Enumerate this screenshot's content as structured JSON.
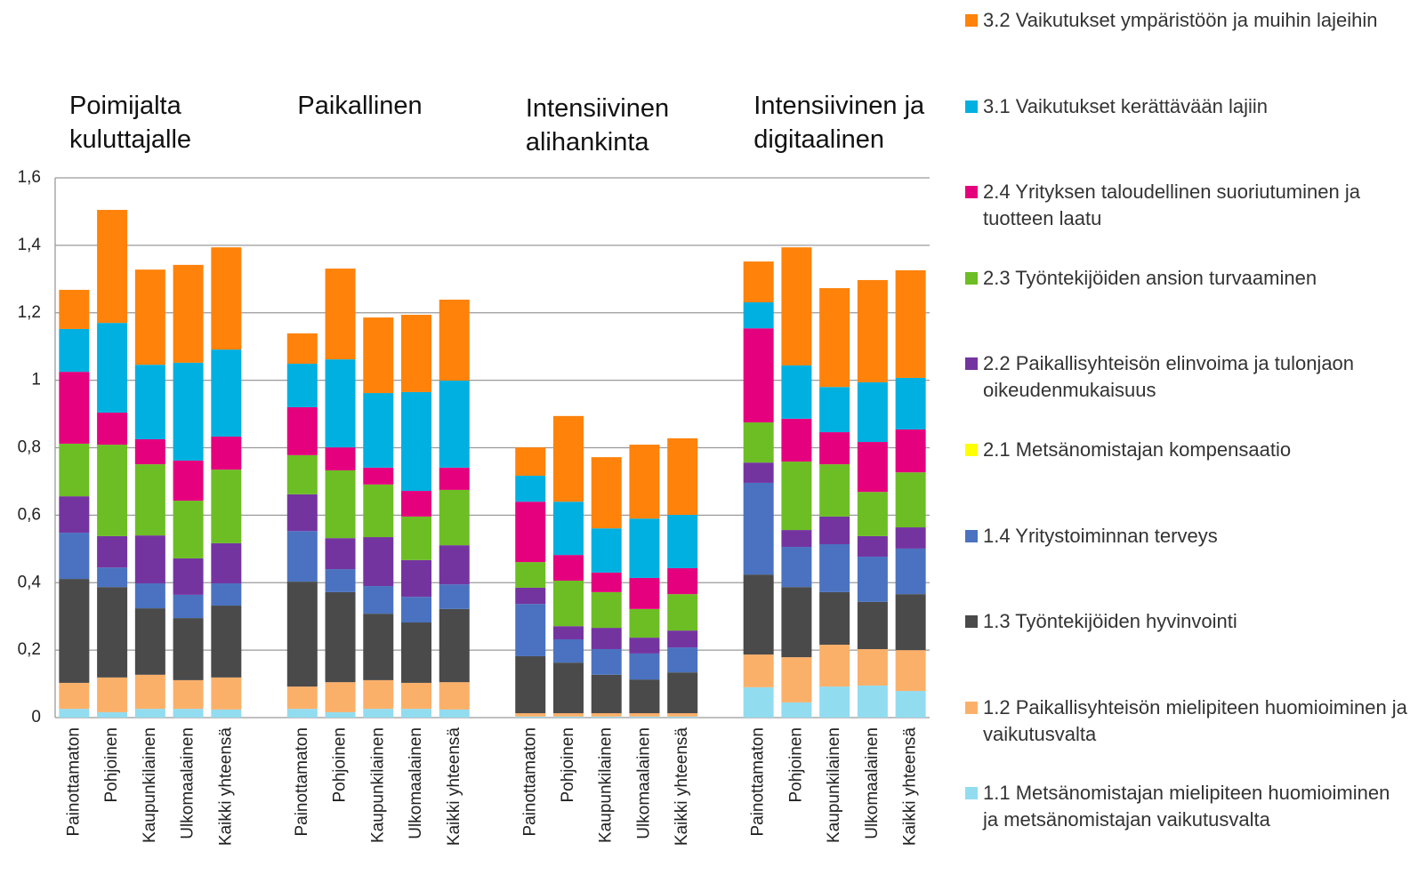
{
  "chart_data": {
    "type": "stacked_bar",
    "group_labels": [
      "Poimijalta kuluttajalle",
      "Paikallinen",
      "Intensiivinen alihankinta",
      "Intensiivinen ja digitaalinen"
    ],
    "categories": [
      "Painottamaton",
      "Pohjoinen",
      "Kaupunkilainen",
      "Ulkomaalainen",
      "Kaikki yhteensä",
      null,
      "Painottamaton",
      "Pohjoinen",
      "Kaupunkilainen",
      "Ulkomaalainen",
      "Kaikki yhteensä",
      null,
      "Painottamaton",
      "Pohjoinen",
      "Kaupunkilainen",
      "Ulkomaalainen",
      "Kaikki yhteensä",
      null,
      "Painottamaton",
      "Pohjoinen",
      "Kaupunkilainen",
      "Ulkomaalainen",
      "Kaikki yhteensä"
    ],
    "ylim": [
      0,
      1.6
    ],
    "yticks": [
      0,
      {
        "value": 0.2,
        "label": "0,2"
      },
      {
        "value": 0.4,
        "label": "0,4"
      },
      {
        "value": 0.6,
        "label": "0,6"
      },
      {
        "value": 0.8,
        "label": "0,8"
      },
      1,
      {
        "value": 1.2,
        "label": "1,2"
      },
      {
        "value": 1.4,
        "label": "1,4"
      },
      {
        "value": 1.6,
        "label": "1,6"
      }
    ],
    "grid": true,
    "legend": "right",
    "series": [
      {
        "name": "1.1 Metsänomistajan mielipiteen huomioiminen ja metsänomistajan vaikutusvalta",
        "color": "#92dcf0",
        "values": [
          0.026,
          0.016,
          0.026,
          0.026,
          0.024,
          null,
          0.026,
          0.016,
          0.026,
          0.026,
          0.024,
          null,
          0.003,
          0.003,
          0.003,
          0.003,
          0.003,
          null,
          0.09,
          0.045,
          0.092,
          0.095,
          0.079
        ]
      },
      {
        "name": "1.2 Paikallisyhteisön mielipiteen huomioiminen ja vaikutusvalta",
        "color": "#fbb06a",
        "values": [
          0.077,
          0.103,
          0.101,
          0.085,
          0.095,
          null,
          0.066,
          0.089,
          0.085,
          0.077,
          0.081,
          null,
          0.01,
          0.01,
          0.01,
          0.01,
          0.01,
          null,
          0.097,
          0.134,
          0.124,
          0.108,
          0.121
        ]
      },
      {
        "name": "1.3 Työntekijöiden hyvinvointi",
        "color": "#4a4a4a",
        "values": [
          0.308,
          0.268,
          0.197,
          0.184,
          0.213,
          null,
          0.311,
          0.267,
          0.197,
          0.179,
          0.217,
          null,
          0.169,
          0.15,
          0.114,
          0.1,
          0.121,
          null,
          0.237,
          0.208,
          0.156,
          0.14,
          0.166
        ]
      },
      {
        "name": "1.4 Yritystoiminnan terveys",
        "color": "#4a72c0",
        "values": [
          0.137,
          0.058,
          0.074,
          0.069,
          0.066,
          null,
          0.15,
          0.068,
          0.082,
          0.076,
          0.073,
          null,
          0.155,
          0.069,
          0.076,
          0.077,
          0.074,
          null,
          0.272,
          0.119,
          0.142,
          0.134,
          0.135
        ]
      },
      {
        "name": "2.1 Metsänomistajan kompensaatio",
        "color": "#ffff00",
        "values": [
          0,
          0,
          0,
          0,
          0,
          null,
          0,
          0,
          0,
          0,
          0,
          null,
          0,
          0,
          0,
          0,
          0,
          null,
          0,
          0,
          0,
          0,
          0
        ]
      },
      {
        "name": "2.2 Paikallisyhteisön elinvoima ja tulonjaon oikeudenmukaisuus",
        "color": "#7434a0",
        "values": [
          0.108,
          0.093,
          0.142,
          0.108,
          0.119,
          null,
          0.109,
          0.092,
          0.145,
          0.109,
          0.116,
          null,
          0.048,
          0.039,
          0.063,
          0.047,
          0.05,
          null,
          0.06,
          0.05,
          0.082,
          0.061,
          0.063
        ]
      },
      {
        "name": "2.3 Työntekijöiden ansion turvaaminen",
        "color": "#6cbe24",
        "values": [
          0.156,
          0.271,
          0.211,
          0.171,
          0.218,
          null,
          0.116,
          0.201,
          0.156,
          0.129,
          0.164,
          null,
          0.076,
          0.135,
          0.106,
          0.085,
          0.108,
          null,
          0.119,
          0.203,
          0.155,
          0.131,
          0.163
        ]
      },
      {
        "name": "2.4 Yrityksen taloudellinen suoriutuminen ja tuotteen laatu",
        "color": "#e5007e",
        "values": [
          0.213,
          0.095,
          0.074,
          0.119,
          0.098,
          null,
          0.142,
          0.068,
          0.05,
          0.076,
          0.066,
          null,
          0.179,
          0.076,
          0.058,
          0.092,
          0.077,
          null,
          0.279,
          0.127,
          0.095,
          0.148,
          0.127
        ]
      },
      {
        "name": "3.1 Vaikutukset kerättävään lajiin",
        "color": "#00b0e0",
        "values": [
          0.127,
          0.266,
          0.221,
          0.29,
          0.258,
          null,
          0.129,
          0.261,
          0.221,
          0.293,
          0.258,
          null,
          0.077,
          0.158,
          0.131,
          0.176,
          0.158,
          null,
          0.077,
          0.158,
          0.134,
          0.177,
          0.153
        ]
      },
      {
        "name": "3.2 Vaikutukset ympäristöön ja muihin lajeihin",
        "color": "#ff820a",
        "values": [
          0.116,
          0.335,
          0.282,
          0.29,
          0.303,
          null,
          0.09,
          0.269,
          0.224,
          0.229,
          0.24,
          null,
          0.084,
          0.254,
          0.211,
          0.219,
          0.227,
          null,
          0.121,
          0.35,
          0.293,
          0.303,
          0.319
        ]
      }
    ]
  }
}
